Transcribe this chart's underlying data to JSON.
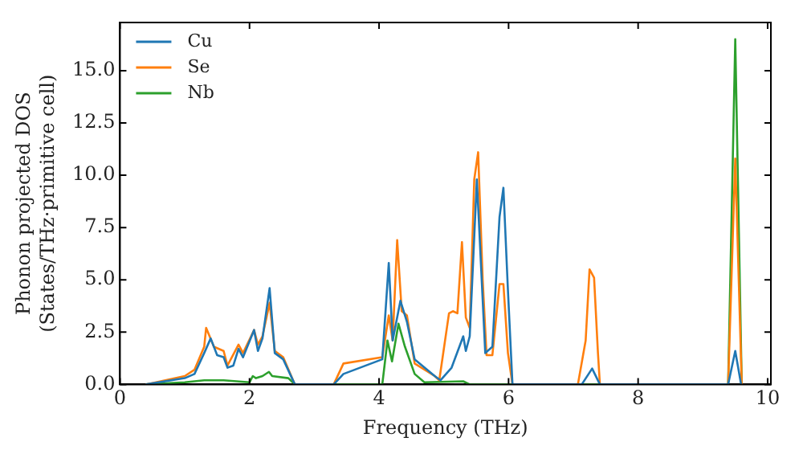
{
  "chart_data": {
    "type": "line",
    "xlabel": "Frequency (THz)",
    "ylabel": "Phonon projected DOS\n(States/THz·primitive cell)",
    "xlim": [
      0,
      10.05
    ],
    "ylim": [
      0,
      17.3
    ],
    "xticks": [
      0,
      2,
      4,
      6,
      8,
      10
    ],
    "yticks": [
      {
        "value": 0,
        "label": "0.0"
      },
      {
        "value": 2.5,
        "label": "2.5"
      },
      {
        "value": 5,
        "label": "5.0"
      },
      {
        "value": 7.5,
        "label": "7.5"
      },
      {
        "value": 10,
        "label": "10.0"
      },
      {
        "value": 12.5,
        "label": "12.5"
      },
      {
        "value": 15,
        "label": "15.0"
      }
    ],
    "legend": "top left",
    "grid": false,
    "marker": "none",
    "line_style": "solid",
    "series": [
      {
        "name": "Cu",
        "color": "#1f77b4",
        "x": [
          0.4,
          1.0,
          1.15,
          1.3,
          1.4,
          1.5,
          1.6,
          1.66,
          1.75,
          1.83,
          1.9,
          2.07,
          2.13,
          2.2,
          2.31,
          2.39,
          2.52,
          2.7,
          3.3,
          3.45,
          4.05,
          4.15,
          4.21,
          4.33,
          4.43,
          4.55,
          4.86,
          4.95,
          5.12,
          5.3,
          5.34,
          5.4,
          5.51,
          5.64,
          5.75,
          5.86,
          5.92,
          5.99,
          6.06,
          7.13,
          7.29,
          7.41,
          9.39,
          9.5,
          9.59
        ],
        "values": [
          0,
          0.3,
          0.5,
          1.5,
          2.2,
          1.4,
          1.3,
          0.8,
          0.9,
          1.7,
          1.3,
          2.6,
          1.6,
          2.2,
          4.6,
          1.5,
          1.2,
          0,
          0,
          0.5,
          1.2,
          5.8,
          2.1,
          4.0,
          3.0,
          1.2,
          0.4,
          0.2,
          0.8,
          2.3,
          1.6,
          2.3,
          9.8,
          1.5,
          1.8,
          8.0,
          9.4,
          4.5,
          0,
          0,
          0.76,
          0,
          0,
          1.6,
          0
        ]
      },
      {
        "name": "Se",
        "color": "#ff7f0e",
        "x": [
          0.4,
          1.0,
          1.15,
          1.3,
          1.33,
          1.45,
          1.6,
          1.66,
          1.83,
          1.9,
          2.07,
          2.13,
          2.2,
          2.31,
          2.39,
          2.52,
          2.7,
          3.3,
          3.45,
          4.05,
          4.15,
          4.21,
          4.28,
          4.35,
          4.43,
          4.55,
          4.86,
          4.93,
          5.08,
          5.14,
          5.21,
          5.28,
          5.34,
          5.4,
          5.47,
          5.53,
          5.6,
          5.66,
          5.75,
          5.86,
          5.92,
          5.99,
          6.06,
          7.07,
          7.19,
          7.25,
          7.32,
          7.38,
          7.41,
          9.39,
          9.5,
          9.6
        ],
        "values": [
          0,
          0.4,
          0.7,
          1.8,
          2.7,
          1.8,
          1.6,
          0.9,
          1.9,
          1.5,
          2.6,
          1.9,
          2.3,
          3.9,
          1.6,
          1.3,
          0,
          0,
          1.0,
          1.3,
          3.3,
          2.1,
          6.9,
          3.5,
          3.3,
          1.0,
          0.4,
          0.2,
          3.4,
          3.5,
          3.4,
          6.8,
          3.2,
          2.7,
          9.8,
          11.1,
          5.0,
          1.4,
          1.4,
          4.8,
          4.8,
          1.5,
          0,
          0,
          2.1,
          5.5,
          5.1,
          1.5,
          0,
          0,
          10.8,
          0
        ]
      },
      {
        "name": "Nb",
        "color": "#2ca02c",
        "x": [
          0.4,
          1.0,
          1.3,
          1.6,
          2.0,
          2.05,
          2.1,
          2.2,
          2.3,
          2.35,
          2.6,
          2.7,
          4.05,
          4.13,
          4.2,
          4.3,
          4.4,
          4.55,
          4.7,
          5.3,
          5.4,
          9.39,
          9.5,
          9.6
        ],
        "values": [
          0,
          0.1,
          0.2,
          0.2,
          0.1,
          0.4,
          0.3,
          0.4,
          0.6,
          0.4,
          0.3,
          0,
          0,
          2.1,
          1.1,
          2.9,
          1.8,
          0.5,
          0.1,
          0.15,
          0,
          0,
          16.5,
          0
        ]
      }
    ]
  }
}
